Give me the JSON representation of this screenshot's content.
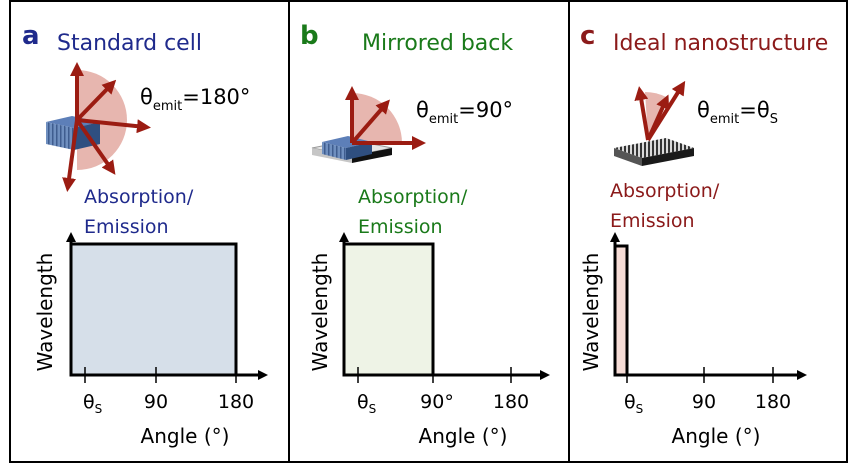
{
  "colors": {
    "panel_a": "#1f2a8c",
    "panel_b": "#1a7a1a",
    "panel_c": "#8b1a1a",
    "arrow": "#9b1c12",
    "fill_a": "#d6dfe9",
    "fill_b": "#eef3e6",
    "fill_c": "#f6dcd6",
    "wedge": "#e3a9a1"
  },
  "panels": [
    {
      "letter": "a",
      "title": "Standard cell",
      "theta_main": "θ",
      "theta_sub": "emit",
      "theta_value": "=180°",
      "absorb_line1": "Absorption/",
      "absorb_line2": "Emission",
      "ylabel": "Wavelength",
      "xlabel": "Angle (°)",
      "tick_theta": "θ",
      "tick_theta_sub": "S",
      "ticks": [
        "90",
        "180"
      ],
      "bar_extent": "180",
      "icon": "standard-cell-icon"
    },
    {
      "letter": "b",
      "title": "Mirrored back",
      "theta_main": "θ",
      "theta_sub": "emit",
      "theta_value": "=90°",
      "absorb_line1": "Absorption/",
      "absorb_line2": "Emission",
      "ylabel": "Wavelength",
      "xlabel": "Angle (°)",
      "tick_theta": "θ",
      "tick_theta_sub": "S",
      "ticks": [
        "90°",
        "180"
      ],
      "bar_extent": "90",
      "icon": "mirrored-cell-icon"
    },
    {
      "letter": "c",
      "title": "Ideal nanostructure",
      "theta_main": "θ",
      "theta_sub": "emit",
      "theta_value": "=θ",
      "theta_value_sub": "S",
      "absorb_line1": "Absorption/",
      "absorb_line2": "Emission",
      "ylabel": "Wavelength",
      "xlabel": "Angle (°)",
      "tick_theta": "θ",
      "tick_theta_sub": "S",
      "ticks": [
        "90",
        "180"
      ],
      "bar_extent": "θS",
      "icon": "nanostructure-icon"
    }
  ]
}
